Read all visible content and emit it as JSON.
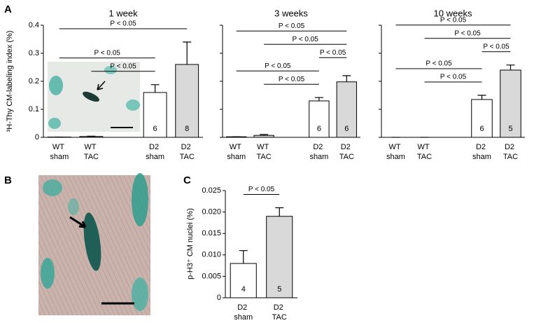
{
  "panel_labels": [
    "A",
    "B",
    "C"
  ],
  "chart_data": [
    {
      "type": "bar",
      "title": "1 week",
      "ylabel": "³H-Thy CM-labeling index (%)",
      "show_ytick_labels": true,
      "categories": [
        "WT sham",
        "WT TAC",
        "D2 sham",
        "D2 TAC"
      ],
      "values": [
        0.001,
        0.003,
        0.16,
        0.26
      ],
      "errors": [
        0,
        0.001,
        0.028,
        0.08
      ],
      "n": [
        null,
        null,
        6,
        8
      ],
      "colors": [
        "#ffffff",
        "#d9d9d9",
        "#ffffff",
        "#d9d9d9"
      ],
      "ylim": [
        0,
        0.4
      ],
      "yticks": [
        0,
        0.1,
        0.2,
        0.3,
        0.4
      ],
      "brackets": [
        {
          "pair": [
            1,
            2
          ],
          "label": "P < 0.05"
        },
        {
          "pair": [
            0,
            2
          ],
          "label": "P < 0.05"
        },
        {
          "pair": [
            0,
            3
          ],
          "label": "P < 0.05"
        }
      ]
    },
    {
      "type": "bar",
      "title": "3 weeks",
      "show_ytick_labels": false,
      "categories": [
        "WT sham",
        "WT TAC",
        "D2 sham",
        "D2 TAC"
      ],
      "values": [
        0.002,
        0.007,
        0.13,
        0.198
      ],
      "errors": [
        0,
        0.003,
        0.012,
        0.022
      ],
      "n": [
        null,
        null,
        6,
        6
      ],
      "colors": [
        "#ffffff",
        "#d9d9d9",
        "#ffffff",
        "#d9d9d9"
      ],
      "ylim": [
        0,
        0.4
      ],
      "yticks": [
        0,
        0.1,
        0.2,
        0.3,
        0.4
      ],
      "brackets": [
        {
          "pair": [
            1,
            2
          ],
          "label": "P < 0.05"
        },
        {
          "pair": [
            0,
            2
          ],
          "label": "P < 0.05"
        },
        {
          "pair": [
            2,
            3
          ],
          "label": "P < 0.05"
        },
        {
          "pair": [
            1,
            3
          ],
          "label": "P < 0.05"
        },
        {
          "pair": [
            0,
            3
          ],
          "label": "P < 0.05"
        }
      ]
    },
    {
      "type": "bar",
      "title": "10 weeks",
      "show_ytick_labels": false,
      "categories": [
        "WT sham",
        "WT TAC",
        "D2 sham",
        "D2 TAC"
      ],
      "values": [
        0,
        0,
        0.135,
        0.24
      ],
      "errors": [
        0,
        0,
        0.015,
        0.018
      ],
      "n": [
        null,
        null,
        6,
        5
      ],
      "colors": [
        "#ffffff",
        "#d9d9d9",
        "#ffffff",
        "#d9d9d9"
      ],
      "ylim": [
        0,
        0.4
      ],
      "yticks": [
        0,
        0.1,
        0.2,
        0.3,
        0.4
      ],
      "brackets": [
        {
          "pair": [
            1,
            2
          ],
          "label": "P < 0.05"
        },
        {
          "pair": [
            0,
            2
          ],
          "label": "P < 0.05"
        },
        {
          "pair": [
            2,
            3
          ],
          "label": "P < 0.05"
        },
        {
          "pair": [
            1,
            3
          ],
          "label": "P < 0.05"
        },
        {
          "pair": [
            0,
            3
          ],
          "label": "P < 0.05"
        }
      ]
    },
    {
      "type": "bar",
      "ylabel": "p-H3⁺ CM nuclei (%)",
      "show_ytick_labels": true,
      "categories": [
        "D2 sham",
        "D2 TAC"
      ],
      "values": [
        0.008,
        0.019
      ],
      "errors": [
        0.003,
        0.002
      ],
      "n": [
        4,
        5
      ],
      "colors": [
        "#ffffff",
        "#d9d9d9"
      ],
      "ylim": [
        0,
        0.025
      ],
      "yticks": [
        0,
        0.005,
        {
          "value": 0.01,
          "label": "0.010"
        },
        0.015,
        {
          "value": 0.02,
          "label": "0.020"
        },
        0.025
      ],
      "brackets": [
        {
          "pair": [
            0,
            1
          ],
          "label": "P < 0.05"
        }
      ]
    }
  ]
}
